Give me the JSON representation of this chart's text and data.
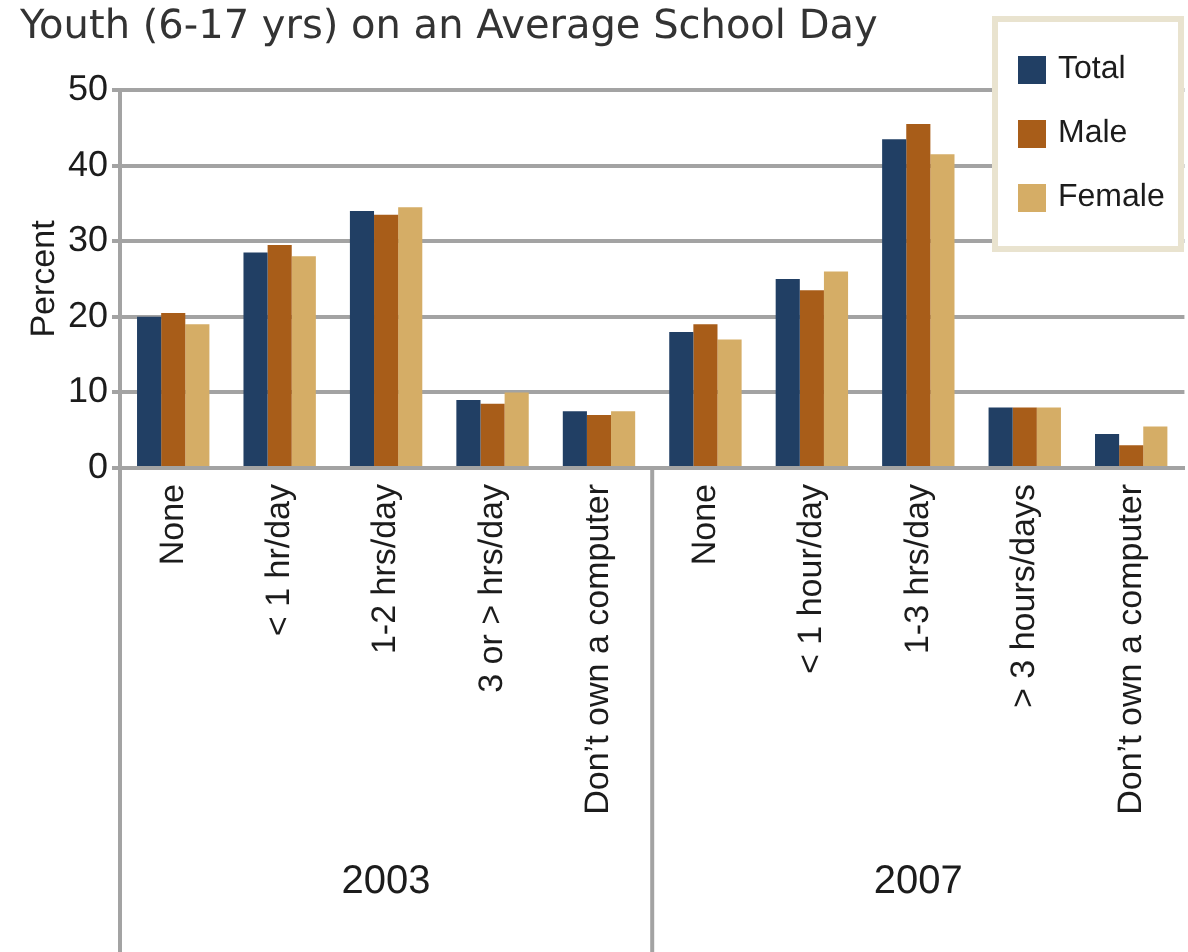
{
  "chart_data": {
    "type": "bar",
    "title": "Youth (6-17 yrs) on an Average School Day",
    "ylabel": "Percent",
    "categories": [
      "None",
      "< 1 hr/day",
      "1-2 hrs/day",
      "3 or > hrs/day",
      "Don’t own a computer",
      "None",
      "< 1 hour/day",
      "1-3 hrs/day",
      "> 3 hours/days",
      "Don’t own a computer"
    ],
    "series": [
      {
        "name": "Total",
        "color": "#213f64",
        "values": [
          20,
          28.5,
          34,
          9,
          7.5,
          18,
          25,
          43.5,
          8,
          4.5
        ]
      },
      {
        "name": "Male",
        "color": "#a85d19",
        "values": [
          20.5,
          29.5,
          33.5,
          8.5,
          7,
          19,
          23.5,
          45.5,
          8,
          3
        ]
      },
      {
        "name": "Female",
        "color": "#d5ad66",
        "values": [
          19,
          28,
          34.5,
          10,
          7.5,
          17,
          26,
          41.5,
          8,
          5.5
        ]
      }
    ],
    "ylim": [
      0,
      50
    ],
    "yticks": [
      0,
      10,
      20,
      30,
      40,
      50
    ],
    "grid": "y",
    "legend": "top right",
    "annotations": [
      "2003",
      "2007"
    ]
  }
}
